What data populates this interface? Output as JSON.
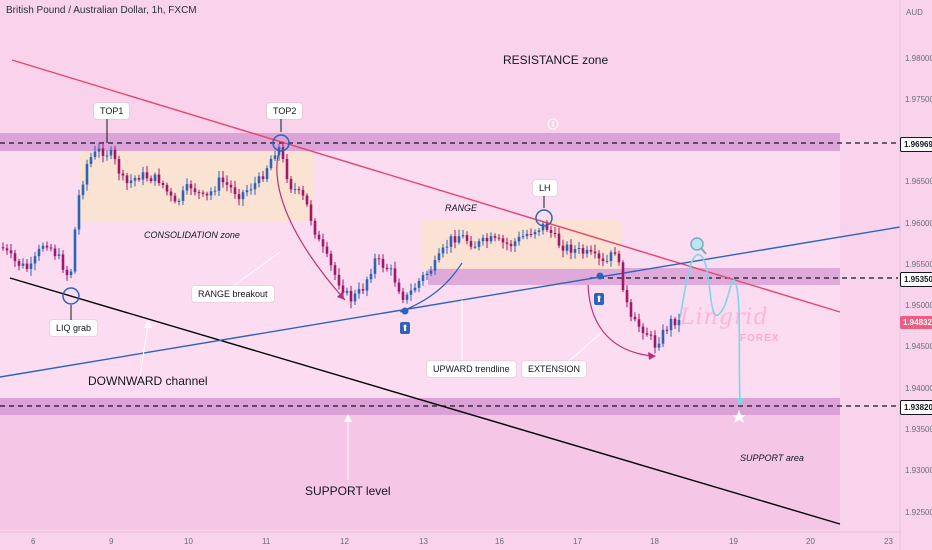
{
  "header": {
    "title": "British Pound / Australian Dollar, 1h, FXCM",
    "currency": "AUD"
  },
  "annotations": {
    "top1": "TOP1",
    "top2": "TOP2",
    "lh": "LH",
    "liq_grab": "LIQ grab",
    "range_breakout": "RANGE breakout",
    "upward_trendline": "UPWARD trendline",
    "extension": "EXTENSION"
  },
  "zones": {
    "resistance": "RESISTANCE zone",
    "consolidation": "CONSOLIDATION zone",
    "range": "RANGE",
    "downward_channel": "DOWNWARD channel",
    "support_level": "SUPPORT level",
    "support_area": "SUPPORT area"
  },
  "price_labels": {
    "resistance_line": "1.96969",
    "mid_line": "1.95350",
    "current": "1.94832",
    "support_line": "1.93820"
  },
  "price_axis": [
    "1.98000",
    "1.97500",
    "1.96500",
    "1.96000",
    "1.95500",
    "1.95000",
    "1.94500",
    "1.94000",
    "1.93500",
    "1.93000",
    "1.92500"
  ],
  "time_axis": [
    "6",
    "9",
    "10",
    "11",
    "12",
    "13",
    "16",
    "17",
    "18",
    "19",
    "20",
    "23"
  ],
  "logo": {
    "name": "Lingrid",
    "sub": "FOREX"
  },
  "colors": {
    "background": "#f9d3ec",
    "resistance_band": "#d69ad3",
    "consolidation_box": "#fbe3cf",
    "channel_line_upper": "#e8436c",
    "channel_line_lower": "#000000",
    "trendline": "#2d64b8",
    "candle_bull": "#2d64b8",
    "candle_bear": "#a3176b",
    "projection": "#7ed6e6"
  }
}
